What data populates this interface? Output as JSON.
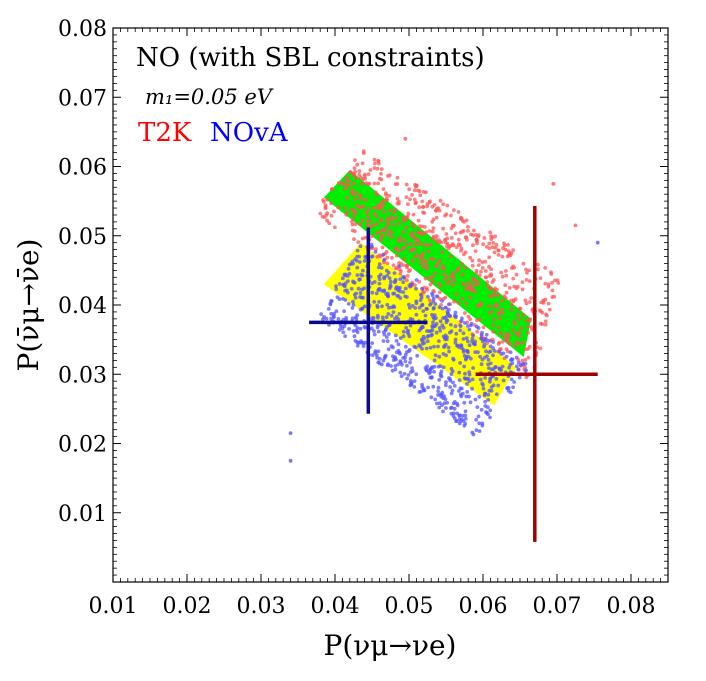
{
  "chart_data": {
    "type": "scatter",
    "title": "NO (with SBL constraints)",
    "annotation": "m₁=0.05 eV",
    "xlabel": "P(νμ→νe)",
    "ylabel": "P(ν̄μ→ν̄e)",
    "xlim": [
      0.01,
      0.085
    ],
    "ylim": [
      0.0,
      0.08
    ],
    "x_ticks": [
      "0.01",
      "0.02",
      "0.03",
      "0.04",
      "0.05",
      "0.06",
      "0.07",
      "0.08"
    ],
    "y_ticks": [
      "0.01",
      "0.02",
      "0.03",
      "0.04",
      "0.05",
      "0.06",
      "0.07",
      "0.08"
    ],
    "legend": [
      {
        "label": "T2K",
        "color": "#ff0000"
      },
      {
        "label": "NOvA",
        "color": "#0000ff"
      }
    ],
    "bands": [
      {
        "name": "T2K allowed band",
        "color": "#00ee00",
        "corners": [
          [
            0.0385,
            0.0555
          ],
          [
            0.042,
            0.0595
          ],
          [
            0.0665,
            0.038
          ],
          [
            0.0655,
            0.0325
          ]
        ]
      },
      {
        "name": "NOvA allowed band",
        "color": "#ffff00",
        "corners": [
          [
            0.0385,
            0.043
          ],
          [
            0.0435,
            0.049
          ],
          [
            0.0645,
            0.031
          ],
          [
            0.0615,
            0.0255
          ]
        ]
      }
    ],
    "scatter_regions": [
      {
        "name": "T2K points",
        "color": "#ff5555",
        "count": 700,
        "seed": 11,
        "corners": [
          [
            0.0372,
            0.0535
          ],
          [
            0.0435,
            0.0625
          ],
          [
            0.0705,
            0.044
          ],
          [
            0.0665,
            0.029
          ]
        ]
      },
      {
        "name": "NOvA points",
        "color": "#5555ff",
        "count": 750,
        "seed": 23,
        "corners": [
          [
            0.0375,
            0.0385
          ],
          [
            0.044,
            0.0495
          ],
          [
            0.0665,
            0.031
          ],
          [
            0.059,
            0.021
          ]
        ]
      }
    ],
    "outliers": [
      {
        "series": "T2K",
        "x": 0.0495,
        "y": 0.064
      },
      {
        "series": "T2K",
        "x": 0.0695,
        "y": 0.0575
      },
      {
        "series": "T2K",
        "x": 0.0725,
        "y": 0.0515
      },
      {
        "series": "NOvA",
        "x": 0.0755,
        "y": 0.049
      },
      {
        "series": "NOvA",
        "x": 0.034,
        "y": 0.0215
      },
      {
        "series": "NOvA",
        "x": 0.034,
        "y": 0.0175
      }
    ],
    "data_points": [
      {
        "name": "NOvA measurement",
        "color": "#0a0a8a",
        "x": 0.0445,
        "y": 0.0375,
        "x_range": [
          0.0365,
          0.0525
        ],
        "y_range": [
          0.0243,
          0.0512
        ]
      },
      {
        "name": "T2K measurement",
        "color": "#a00000",
        "x": 0.067,
        "y": 0.03,
        "x_range": [
          0.059,
          0.0755
        ],
        "y_range": [
          0.0058,
          0.0543
        ]
      }
    ]
  }
}
